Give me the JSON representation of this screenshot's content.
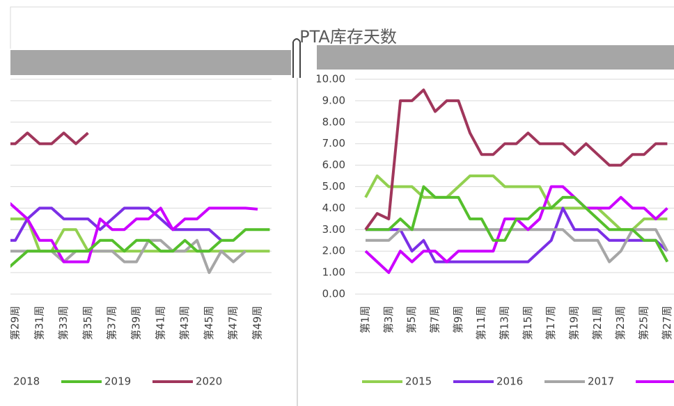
{
  "title": "PTA库存天数",
  "chart_data": [
    {
      "type": "line",
      "categories": [
        null,
        "第29周",
        null,
        "第31周",
        null,
        "第33周",
        null,
        "第35周",
        null,
        "第37周",
        null,
        "第39周",
        null,
        "第41周",
        null,
        "第43周",
        null,
        "第45周",
        null,
        "第47周",
        null,
        "第49周",
        null
      ],
      "series": [
        {
          "color": "#92d050",
          "values": [
            3.5,
            3.5,
            3.5,
            2.0,
            2.0,
            3.0,
            3.0,
            2.0,
            2.0,
            2.0,
            2.0,
            2.0,
            2.0,
            2.0,
            2.0,
            2.0,
            2.0,
            2.0,
            2.0,
            2.0,
            2.0,
            2.0,
            2.0
          ]
        },
        {
          "color": "#7b2fe6",
          "values": [
            2.5,
            2.5,
            3.5,
            4.0,
            4.0,
            3.5,
            3.5,
            3.5,
            3.0,
            3.5,
            4.0,
            4.0,
            4.0,
            3.5,
            3.0,
            3.0,
            3.0,
            3.0,
            2.5,
            null,
            null,
            null,
            null
          ]
        },
        {
          "color": "#a6a6a6",
          "values": [
            2.0,
            2.0,
            2.0,
            2.0,
            2.0,
            1.5,
            2.0,
            2.0,
            2.0,
            2.0,
            1.5,
            1.5,
            2.5,
            2.5,
            2.0,
            2.0,
            2.5,
            1.0,
            2.0,
            1.5,
            2.0,
            null,
            null
          ]
        },
        {
          "name": "2018",
          "color": "#cc00ff",
          "values": [
            4.5,
            4.0,
            3.5,
            2.5,
            2.5,
            1.5,
            1.5,
            1.5,
            3.5,
            3.0,
            3.0,
            3.5,
            3.5,
            4.0,
            3.0,
            3.5,
            3.5,
            4.0,
            4.0,
            4.0,
            4.0,
            3.95,
            null
          ]
        },
        {
          "name": "2019",
          "color": "#55bf2c",
          "values": [
            1.0,
            1.5,
            2.0,
            2.0,
            2.0,
            2.0,
            2.0,
            2.0,
            2.5,
            2.5,
            2.0,
            2.5,
            2.5,
            2.0,
            2.0,
            2.5,
            2.0,
            2.0,
            2.5,
            2.5,
            3.0,
            3.0,
            3.0
          ]
        },
        {
          "name": "2020",
          "color": "#a0365b",
          "values": [
            7.0,
            7.0,
            7.5,
            7.0,
            7.0,
            7.5,
            7.0,
            7.5,
            null,
            null,
            null,
            null,
            null,
            null,
            null,
            null,
            null,
            null,
            null,
            null,
            null,
            null,
            null
          ]
        }
      ],
      "ylim": [
        0,
        10
      ],
      "yticks": [
        0,
        1,
        2,
        3,
        4,
        5,
        6,
        7,
        8,
        9,
        10
      ],
      "grid": true
    },
    {
      "type": "line",
      "categories": [
        "第1周",
        null,
        "第3周",
        null,
        "第5周",
        null,
        "第7周",
        null,
        "第9周",
        null,
        "第11周",
        null,
        "第13周",
        null,
        "第15周",
        null,
        "第17周",
        null,
        "第19周",
        null,
        "第21周",
        null,
        "第23周",
        null,
        "第25周",
        null,
        "第27周"
      ],
      "series": [
        {
          "name": "2015",
          "color": "#92d050",
          "values": [
            4.5,
            5.5,
            5.0,
            5.0,
            5.0,
            4.5,
            4.5,
            4.5,
            5.0,
            5.5,
            5.5,
            5.5,
            5.0,
            5.0,
            5.0,
            5.0,
            4.0,
            4.0,
            4.0,
            4.0,
            4.0,
            3.5,
            3.0,
            3.0,
            3.5,
            3.5,
            3.5
          ]
        },
        {
          "name": "2016",
          "color": "#7b2fe6",
          "values": [
            3.0,
            3.0,
            3.0,
            3.0,
            2.0,
            2.5,
            1.5,
            1.5,
            1.5,
            1.5,
            1.5,
            1.5,
            1.5,
            1.5,
            1.5,
            2.0,
            2.5,
            4.0,
            3.0,
            3.0,
            3.0,
            2.5,
            2.5,
            2.5,
            2.5,
            2.5,
            2.0
          ]
        },
        {
          "name": "2017",
          "color": "#a6a6a6",
          "values": [
            2.5,
            2.5,
            2.5,
            3.0,
            3.0,
            3.0,
            3.0,
            3.0,
            3.0,
            3.0,
            3.0,
            3.0,
            3.0,
            3.0,
            3.0,
            3.0,
            3.0,
            3.0,
            2.5,
            2.5,
            2.5,
            1.5,
            2.0,
            3.0,
            3.0,
            3.0,
            2.0
          ]
        },
        {
          "color": "#cc00ff",
          "values": [
            2.0,
            1.5,
            1.0,
            2.0,
            1.5,
            2.0,
            2.0,
            1.5,
            2.0,
            2.0,
            2.0,
            2.0,
            3.5,
            3.5,
            3.0,
            3.5,
            5.0,
            5.0,
            4.5,
            4.0,
            4.0,
            4.0,
            4.5,
            4.0,
            4.0,
            3.5,
            4.0
          ]
        },
        {
          "color": "#55bf2c",
          "values": [
            3.0,
            3.0,
            3.0,
            3.5,
            3.0,
            5.0,
            4.5,
            4.5,
            4.5,
            3.5,
            3.5,
            2.5,
            2.5,
            3.5,
            3.5,
            4.0,
            4.0,
            4.5,
            4.5,
            4.0,
            3.5,
            3.0,
            3.0,
            3.0,
            2.5,
            2.5,
            1.5
          ]
        },
        {
          "color": "#a0365b",
          "values": [
            3.0,
            3.75,
            3.5,
            9.0,
            9.0,
            9.5,
            8.5,
            9.0,
            9.0,
            7.5,
            6.5,
            6.5,
            7.0,
            7.0,
            7.5,
            7.0,
            7.0,
            7.0,
            6.5,
            7.0,
            6.5,
            6.0,
            6.0,
            6.5,
            6.5,
            7.0,
            7.0
          ]
        }
      ],
      "ylim": [
        0,
        10
      ],
      "yticks": [
        {
          "value": 0,
          "label": "0.00"
        },
        {
          "value": 1,
          "label": "1.00"
        },
        {
          "value": 2,
          "label": "2.00"
        },
        {
          "value": 3,
          "label": "3.00"
        },
        {
          "value": 4,
          "label": "4.00"
        },
        {
          "value": 5,
          "label": "5.00"
        },
        {
          "value": 6,
          "label": "6.00"
        },
        {
          "value": 7,
          "label": "7.00"
        },
        {
          "value": 8,
          "label": "8.00"
        },
        {
          "value": 9,
          "label": "9.00"
        },
        {
          "value": 10,
          "label": "10.00"
        }
      ],
      "grid": true
    }
  ]
}
